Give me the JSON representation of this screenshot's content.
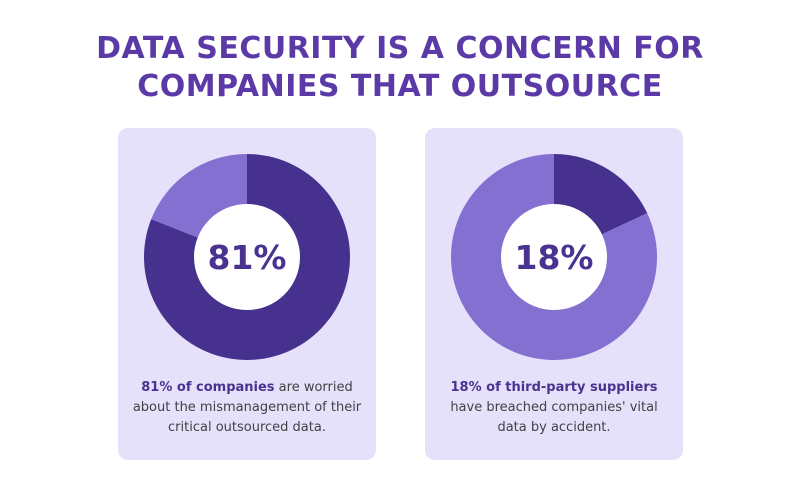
{
  "title": {
    "line1": "DATA SECURITY IS A CONCERN FOR",
    "line2": "COMPANIES THAT OUTSOURCE"
  },
  "colors": {
    "title": "#5b3aa8",
    "card_background": "#e6e1fb",
    "primary_segment": "#46328e",
    "secondary_segment": "#8470d0",
    "center_hole": "#ffffff",
    "label_text": "#4a3290"
  },
  "chart_data": [
    {
      "type": "pie",
      "center_label": "81%",
      "slices": [
        {
          "label": "",
          "value": 81,
          "color": "#46328e"
        },
        {
          "label": "",
          "value": 19,
          "color": "#8470d0"
        }
      ],
      "caption_highlight": "81% of companies",
      "caption_rest": " are worried about the mismanagement of their critical outsourced data."
    },
    {
      "type": "pie",
      "center_label": "18%",
      "slices": [
        {
          "label": "",
          "value": 18,
          "color": "#46328e"
        },
        {
          "label": "",
          "value": 82,
          "color": "#8470d0"
        }
      ],
      "caption_highlight": "18% of third-party suppliers",
      "caption_rest": " have breached companies' vital data by accident."
    }
  ]
}
